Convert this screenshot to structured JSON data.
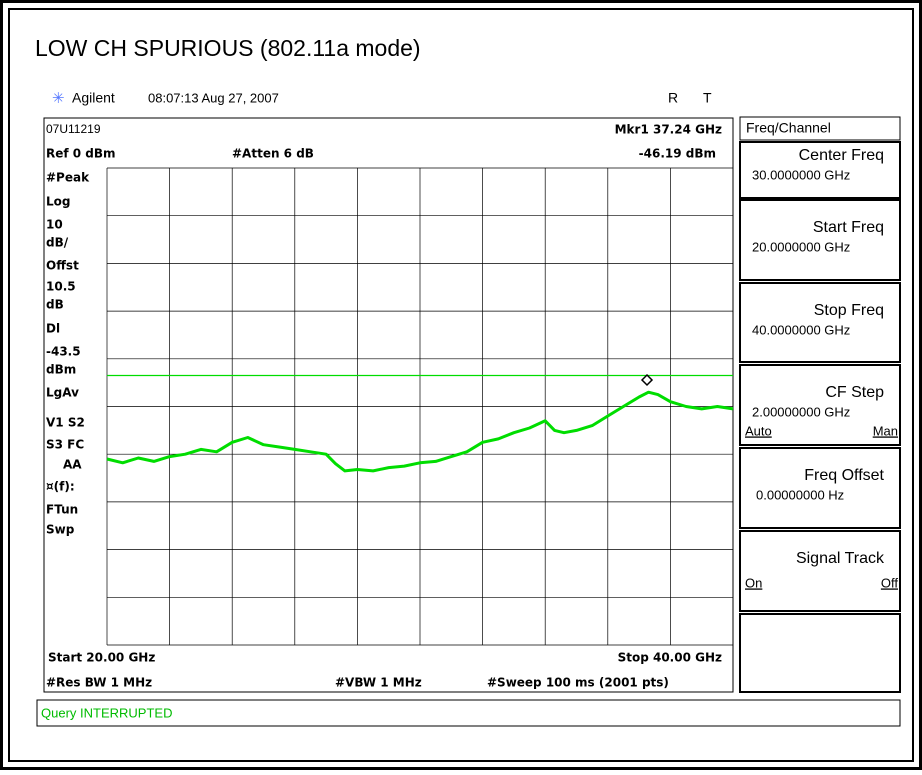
{
  "title": "LOW CH SPURIOUS (802.11a mode)",
  "header": {
    "brand": "Agilent",
    "time": "08:07:13  Aug 27, 2007",
    "r": "R",
    "t": "T"
  },
  "info": {
    "id": "07U11219",
    "marker": "Mkr1  37.24 GHz",
    "ref": "Ref 0 dBm",
    "atten": "#Atten 6 dB",
    "marker_level": "-46.19 dBm"
  },
  "side_labels": [
    "#Peak",
    "Log",
    "10",
    "dB/",
    "Offst",
    "10.5",
    "dB",
    "Dl",
    "-43.5",
    "dBm",
    "LgAv",
    "V1  S2",
    "S3  FC",
    "AA",
    "¤(f):",
    "FTun",
    "Swp"
  ],
  "footer": {
    "start": "Start 20.00 GHz",
    "stop": "Stop 40.00 GHz",
    "rbw": "#Res BW 1 MHz",
    "vbw": "#VBW 1 MHz",
    "sweep": "#Sweep 100 ms (2001 pts)"
  },
  "status": "Query INTERRUPTED",
  "menu": {
    "title": "Freq/Channel",
    "keys": [
      {
        "label": "Center Freq",
        "value": "30.0000000 GHz"
      },
      {
        "label": "Start Freq",
        "value": "20.0000000 GHz"
      },
      {
        "label": "Stop Freq",
        "value": "40.0000000 GHz"
      },
      {
        "label": "CF Step",
        "value": "2.00000000 GHz",
        "left": "Auto",
        "right": "Man"
      },
      {
        "label": "Freq Offset",
        "value": "0.00000000  Hz"
      },
      {
        "label": "Signal Track",
        "left": "On",
        "right": "Off"
      }
    ]
  },
  "trace": {
    "color": "#00dd00",
    "xlim": [
      20,
      40
    ],
    "ylim": [
      -100,
      0
    ],
    "display_line": -43.5,
    "x": [
      20,
      20.5,
      21,
      21.5,
      22,
      22.5,
      23,
      23.5,
      24,
      24.5,
      25,
      25.5,
      26,
      26.5,
      27,
      27.3,
      27.6,
      28,
      28.5,
      29,
      29.5,
      30,
      30.5,
      31,
      31.5,
      32,
      32.5,
      33,
      33.5,
      34,
      34.3,
      34.6,
      35,
      35.5,
      36,
      36.5,
      37,
      37.3,
      37.6,
      38,
      38.5,
      39,
      39.5,
      40
    ],
    "values": [
      -61,
      -61.8,
      -60.8,
      -61.5,
      -60.5,
      -60,
      -59,
      -59.5,
      -57.5,
      -56.5,
      -58,
      -58.5,
      -59,
      -59.5,
      -60,
      -62,
      -63.5,
      -63.2,
      -63.5,
      -62.8,
      -62.5,
      -61.8,
      -61.5,
      -60.5,
      -59.5,
      -57.5,
      -56.8,
      -55.5,
      -54.5,
      -53,
      -55,
      -55.5,
      -55,
      -54,
      -52,
      -50,
      -48,
      -47,
      -47.5,
      -49,
      -50,
      -50.5,
      -50,
      -50.5
    ]
  }
}
